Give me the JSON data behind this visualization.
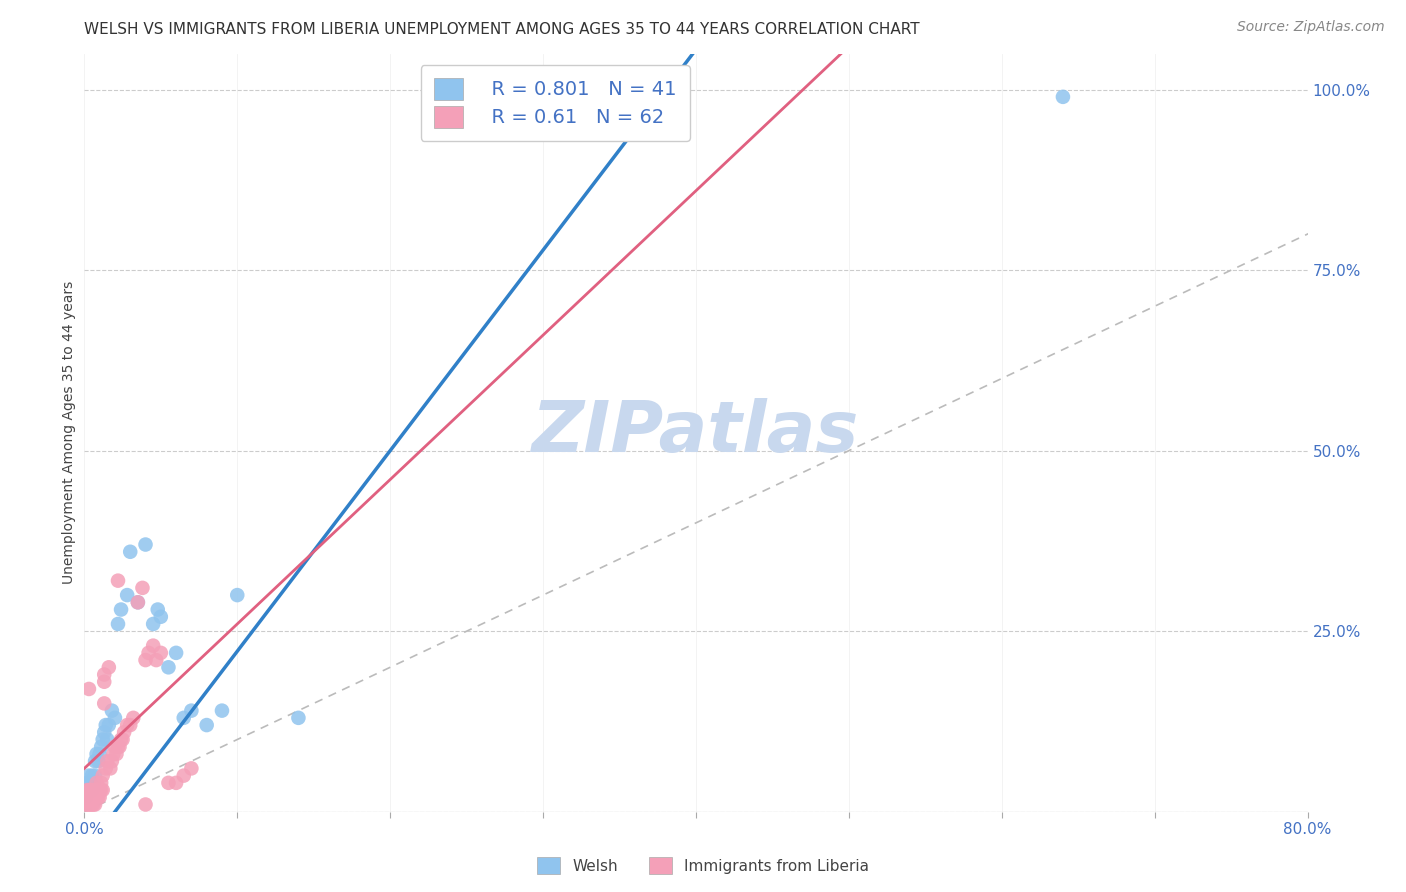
{
  "title": "WELSH VS IMMIGRANTS FROM LIBERIA UNEMPLOYMENT AMONG AGES 35 TO 44 YEARS CORRELATION CHART",
  "source": "Source: ZipAtlas.com",
  "ylabel": "Unemployment Among Ages 35 to 44 years",
  "xlim": [
    0.0,
    0.8
  ],
  "ylim": [
    0.0,
    1.05
  ],
  "xticks": [
    0.0,
    0.1,
    0.2,
    0.3,
    0.4,
    0.5,
    0.6,
    0.7,
    0.8
  ],
  "xtick_labels": [
    "0.0%",
    "",
    "",
    "",
    "",
    "",
    "",
    "",
    "80.0%"
  ],
  "yticks_right": [
    0.0,
    0.25,
    0.5,
    0.75,
    1.0
  ],
  "ytick_labels_right": [
    "",
    "25.0%",
    "50.0%",
    "75.0%",
    "100.0%"
  ],
  "welsh_R": 0.801,
  "welsh_N": 41,
  "liberia_R": 0.61,
  "liberia_N": 62,
  "welsh_color": "#90C4EE",
  "liberia_color": "#F4A0B8",
  "welsh_line_color": "#3080C8",
  "liberia_line_color": "#E06080",
  "ref_line_color": "#BBBBBB",
  "background_color": "#FFFFFF",
  "watermark": "ZIPatlas",
  "welsh_x": [
    0.001,
    0.002,
    0.002,
    0.003,
    0.003,
    0.004,
    0.005,
    0.005,
    0.006,
    0.007,
    0.007,
    0.008,
    0.009,
    0.01,
    0.011,
    0.012,
    0.013,
    0.014,
    0.015,
    0.016,
    0.018,
    0.02,
    0.022,
    0.024,
    0.028,
    0.03,
    0.035,
    0.04,
    0.045,
    0.048,
    0.05,
    0.055,
    0.06,
    0.065,
    0.07,
    0.08,
    0.09,
    0.1,
    0.14,
    0.37,
    0.64
  ],
  "welsh_y": [
    0.02,
    0.03,
    0.04,
    0.03,
    0.05,
    0.04,
    0.03,
    0.05,
    0.04,
    0.05,
    0.07,
    0.08,
    0.07,
    0.08,
    0.09,
    0.1,
    0.11,
    0.12,
    0.1,
    0.12,
    0.14,
    0.13,
    0.26,
    0.28,
    0.3,
    0.36,
    0.29,
    0.37,
    0.26,
    0.28,
    0.27,
    0.2,
    0.22,
    0.13,
    0.14,
    0.12,
    0.14,
    0.3,
    0.13,
    0.99,
    0.99
  ],
  "liberia_x": [
    0.001,
    0.001,
    0.002,
    0.002,
    0.002,
    0.003,
    0.003,
    0.003,
    0.004,
    0.004,
    0.004,
    0.005,
    0.005,
    0.006,
    0.006,
    0.006,
    0.007,
    0.007,
    0.008,
    0.008,
    0.008,
    0.009,
    0.009,
    0.01,
    0.01,
    0.011,
    0.011,
    0.012,
    0.012,
    0.013,
    0.013,
    0.014,
    0.015,
    0.016,
    0.017,
    0.018,
    0.019,
    0.02,
    0.021,
    0.022,
    0.023,
    0.024,
    0.025,
    0.026,
    0.028,
    0.03,
    0.032,
    0.035,
    0.038,
    0.04,
    0.042,
    0.045,
    0.047,
    0.05,
    0.055,
    0.06,
    0.065,
    0.07,
    0.003,
    0.013,
    0.022,
    0.04
  ],
  "liberia_y": [
    0.01,
    0.02,
    0.01,
    0.02,
    0.03,
    0.01,
    0.02,
    0.03,
    0.01,
    0.02,
    0.03,
    0.01,
    0.02,
    0.01,
    0.02,
    0.03,
    0.01,
    0.02,
    0.02,
    0.03,
    0.04,
    0.02,
    0.03,
    0.02,
    0.03,
    0.03,
    0.04,
    0.03,
    0.05,
    0.18,
    0.19,
    0.06,
    0.07,
    0.2,
    0.06,
    0.07,
    0.08,
    0.09,
    0.08,
    0.09,
    0.09,
    0.1,
    0.1,
    0.11,
    0.12,
    0.12,
    0.13,
    0.29,
    0.31,
    0.21,
    0.22,
    0.23,
    0.21,
    0.22,
    0.04,
    0.04,
    0.05,
    0.06,
    0.17,
    0.15,
    0.32,
    0.01
  ],
  "title_fontsize": 11,
  "axis_label_fontsize": 10,
  "tick_fontsize": 11,
  "legend_fontsize": 14,
  "watermark_fontsize": 52,
  "watermark_color": "#C8D8EE",
  "source_fontsize": 10,
  "source_color": "#888888",
  "tick_color": "#4472C4"
}
